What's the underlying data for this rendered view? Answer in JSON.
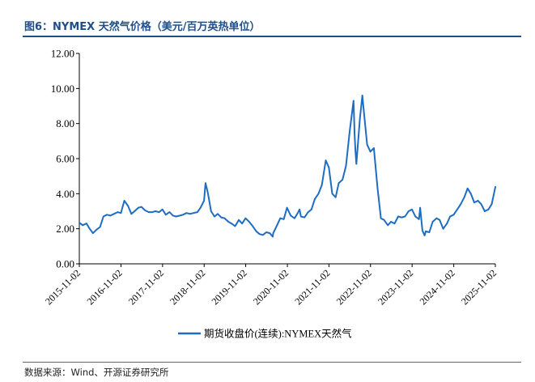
{
  "title": "图6：NYMEX 天然气价格（美元/百万英热单位）",
  "source": "数据来源：Wind、开源证券研究所",
  "colors": {
    "series": "#1f6dc3",
    "title": "#1f4e8c",
    "axis": "#000000"
  },
  "chart_data": {
    "type": "line",
    "title": "",
    "xlabel": "",
    "ylabel": "",
    "ylim": [
      0,
      12
    ],
    "yticks": [
      "0.00",
      "2.00",
      "4.00",
      "6.00",
      "8.00",
      "10.00",
      "12.00"
    ],
    "xlim": [
      "2015-11-02",
      "2025-11-02"
    ],
    "xticks": [
      "2015-11-02",
      "2016-11-02",
      "2017-11-02",
      "2018-11-02",
      "2019-11-02",
      "2020-11-02",
      "2021-11-02",
      "2022-11-02",
      "2023-11-02",
      "2024-11-02",
      "2025-11-02"
    ],
    "grid": false,
    "legend_position": "bottom-center",
    "series": [
      {
        "name": "期货收盘价(连续):NYMEX天然气",
        "x": [
          "2015-11-02",
          "2015-12-01",
          "2016-01-04",
          "2016-02-01",
          "2016-03-01",
          "2016-04-01",
          "2016-05-02",
          "2016-06-01",
          "2016-07-01",
          "2016-08-01",
          "2016-09-01",
          "2016-10-03",
          "2016-11-01",
          "2016-12-01",
          "2017-01-03",
          "2017-02-01",
          "2017-03-01",
          "2017-04-03",
          "2017-05-01",
          "2017-06-01",
          "2017-07-03",
          "2017-08-01",
          "2017-09-01",
          "2017-10-02",
          "2017-11-01",
          "2017-12-01",
          "2018-01-02",
          "2018-02-01",
          "2018-03-01",
          "2018-04-02",
          "2018-05-01",
          "2018-06-01",
          "2018-07-02",
          "2018-08-01",
          "2018-09-04",
          "2018-10-01",
          "2018-11-01",
          "2018-11-14",
          "2018-12-03",
          "2019-01-02",
          "2019-02-01",
          "2019-03-01",
          "2019-04-01",
          "2019-05-01",
          "2019-06-03",
          "2019-07-01",
          "2019-08-01",
          "2019-09-03",
          "2019-10-01",
          "2019-11-01",
          "2019-12-02",
          "2020-01-02",
          "2020-02-03",
          "2020-03-02",
          "2020-04-01",
          "2020-05-01",
          "2020-06-01",
          "2020-06-26",
          "2020-07-01",
          "2020-08-03",
          "2020-09-01",
          "2020-10-01",
          "2020-10-30",
          "2020-12-01",
          "2021-01-04",
          "2021-02-01",
          "2021-02-17",
          "2021-03-01",
          "2021-04-01",
          "2021-05-03",
          "2021-06-01",
          "2021-07-01",
          "2021-08-02",
          "2021-09-01",
          "2021-10-05",
          "2021-11-01",
          "2021-12-01",
          "2021-12-31",
          "2022-01-27",
          "2022-03-01",
          "2022-04-01",
          "2022-05-02",
          "2022-06-06",
          "2022-06-15",
          "2022-06-23",
          "2022-07-01",
          "2022-08-01",
          "2022-08-22",
          "2022-09-01",
          "2022-10-03",
          "2022-11-01",
          "2022-12-01",
          "2023-01-03",
          "2023-02-01",
          "2023-03-01",
          "2023-04-03",
          "2023-05-01",
          "2023-06-01",
          "2023-07-03",
          "2023-08-01",
          "2023-09-01",
          "2023-10-02",
          "2023-11-01",
          "2023-12-01",
          "2024-01-02",
          "2024-01-12",
          "2024-02-01",
          "2024-02-20",
          "2024-03-01",
          "2024-04-01",
          "2024-05-01",
          "2024-06-03",
          "2024-07-01",
          "2024-08-01",
          "2024-09-03",
          "2024-10-01",
          "2024-11-01",
          "2024-12-02",
          "2025-01-02",
          "2025-02-03",
          "2025-03-03",
          "2025-04-01",
          "2025-05-01",
          "2025-06-02",
          "2025-07-01",
          "2025-08-01",
          "2025-09-02",
          "2025-10-01",
          "2025-11-03"
        ],
        "y": [
          2.35,
          2.2,
          2.3,
          2.0,
          1.75,
          1.95,
          2.1,
          2.7,
          2.8,
          2.75,
          2.85,
          2.95,
          2.9,
          3.6,
          3.3,
          2.85,
          3.0,
          3.2,
          3.25,
          3.05,
          2.95,
          2.95,
          3.0,
          2.95,
          3.1,
          2.8,
          2.95,
          2.75,
          2.7,
          2.75,
          2.8,
          2.9,
          2.85,
          2.9,
          2.95,
          3.2,
          3.6,
          4.6,
          4.1,
          3.0,
          2.7,
          2.85,
          2.65,
          2.6,
          2.4,
          2.3,
          2.15,
          2.5,
          2.3,
          2.6,
          2.4,
          2.15,
          1.85,
          1.7,
          1.65,
          1.8,
          1.75,
          1.55,
          1.75,
          2.2,
          2.6,
          2.55,
          3.2,
          2.75,
          2.6,
          2.9,
          3.1,
          2.7,
          2.65,
          2.95,
          3.1,
          3.7,
          4.0,
          4.5,
          5.9,
          5.5,
          4.0,
          3.8,
          4.6,
          4.8,
          5.6,
          7.5,
          9.3,
          7.4,
          6.4,
          5.7,
          8.3,
          9.6,
          8.9,
          6.8,
          6.4,
          6.6,
          4.3,
          2.6,
          2.5,
          2.2,
          2.4,
          2.3,
          2.7,
          2.65,
          2.7,
          3.0,
          3.1,
          2.7,
          2.55,
          3.2,
          1.9,
          1.62,
          1.85,
          1.8,
          2.4,
          2.6,
          2.5,
          2.0,
          2.3,
          2.7,
          2.8,
          3.1,
          3.4,
          3.8,
          4.3,
          4.0,
          3.5,
          3.6,
          3.4,
          3.0,
          3.1,
          3.4,
          4.4
        ]
      }
    ]
  }
}
